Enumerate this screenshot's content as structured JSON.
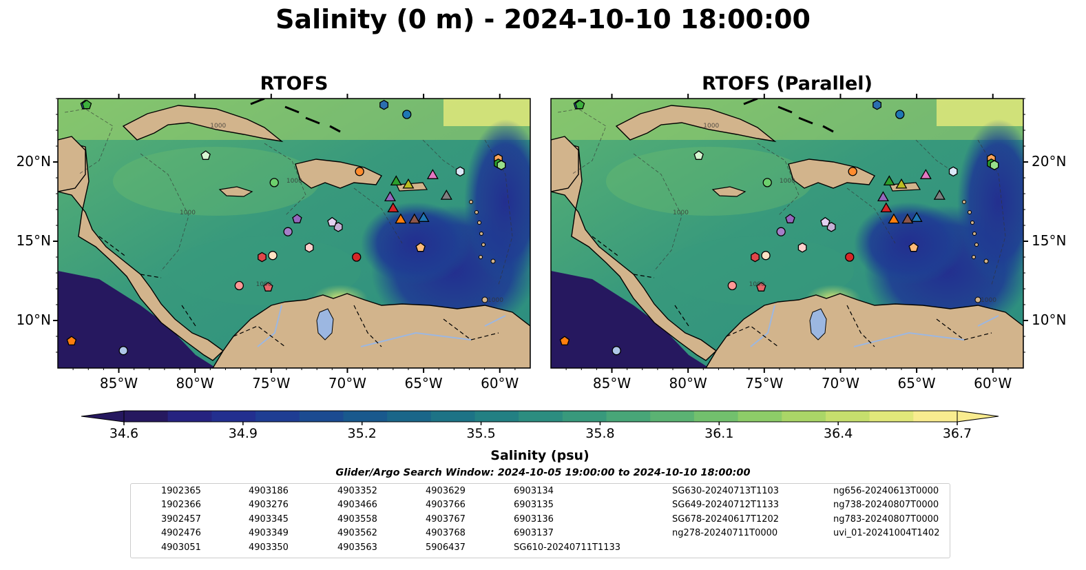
{
  "suptitle": "Salinity (0 m) - 2024-10-10 18:00:00",
  "chart_data": {
    "type": "heatmap",
    "title": "Salinity (0 m) - 2024-10-10 18:00:00",
    "panels": [
      {
        "title": "RTOFS"
      },
      {
        "title": "RTOFS (Parallel)"
      }
    ],
    "lon_range": [
      -89,
      -58
    ],
    "lat_range": [
      7,
      24
    ],
    "x_ticks": [
      {
        "value": -85,
        "label": "85°W"
      },
      {
        "value": -80,
        "label": "80°W"
      },
      {
        "value": -75,
        "label": "75°W"
      },
      {
        "value": -70,
        "label": "70°W"
      },
      {
        "value": -65,
        "label": "65°W"
      },
      {
        "value": -60,
        "label": "60°W"
      }
    ],
    "y_ticks": [
      {
        "value": 10,
        "label": "10°N"
      },
      {
        "value": 15,
        "label": "15°N"
      },
      {
        "value": 20,
        "label": "20°N"
      }
    ],
    "contour_label": "1000",
    "colorbar": {
      "label": "Salinity (psu)",
      "vmin": 34.6,
      "vmax": 36.7,
      "ticks": [
        {
          "value": 34.6,
          "label": "34.6"
        },
        {
          "value": 34.9,
          "label": "34.9"
        },
        {
          "value": 35.2,
          "label": "35.2"
        },
        {
          "value": 35.5,
          "label": "35.5"
        },
        {
          "value": 35.8,
          "label": "35.8"
        },
        {
          "value": 36.1,
          "label": "36.1"
        },
        {
          "value": 36.4,
          "label": "36.4"
        },
        {
          "value": 36.7,
          "label": "36.7"
        }
      ],
      "colors": [
        "#26185f",
        "#262380",
        "#232f8f",
        "#1f3d93",
        "#1b4b91",
        "#19598d",
        "#1a6689",
        "#1d7386",
        "#238083",
        "#2c8d80",
        "#38997c",
        "#48a678",
        "#5bb373",
        "#72c06d",
        "#8dcc68",
        "#aad667",
        "#c6df6d",
        "#e1e87a",
        "#f9ec8f"
      ],
      "land_color": "#d2b48c",
      "lake_color": "#9cb7e1"
    },
    "search_window": "Glider/Argo Search Window: 2024-10-05 19:00:00 to 2024-10-10 18:00:00",
    "argo_floats": [
      {
        "id": "1902365",
        "lon": -66.1,
        "lat": 23.0,
        "marker": "circle",
        "color": "#1f77b4"
      },
      {
        "id": "1902366",
        "lon": -67.6,
        "lat": 23.6,
        "marker": "hexagon",
        "color": "#2b6fb0"
      },
      {
        "id": "3902457",
        "lon": -87.2,
        "lat": 23.6,
        "marker": "pentagon",
        "color": "#3c7fc4"
      },
      {
        "id": "4902476",
        "lon": -84.7,
        "lat": 8.1,
        "marker": "circle",
        "color": "#aec7e8"
      },
      {
        "id": "4903051",
        "lon": -62.6,
        "lat": 19.4,
        "marker": "hexagon",
        "color": "#dbe8f7"
      },
      {
        "id": "4903186",
        "lon": -88.1,
        "lat": 8.7,
        "marker": "pentagon",
        "color": "#ff7f0e"
      },
      {
        "id": "4903276",
        "lon": -69.2,
        "lat": 19.4,
        "marker": "circle",
        "color": "#ff8c2e"
      },
      {
        "id": "4903345",
        "lon": -60.1,
        "lat": 20.2,
        "marker": "hexagon",
        "color": "#ffa55a"
      },
      {
        "id": "4903349",
        "lon": -65.2,
        "lat": 14.6,
        "marker": "pentagon",
        "color": "#ffbb78"
      },
      {
        "id": "4903350",
        "lon": -74.9,
        "lat": 14.1,
        "marker": "circle",
        "color": "#ffe3c4"
      },
      {
        "id": "4903352",
        "lon": -60.1,
        "lat": 19.9,
        "marker": "hexagon",
        "color": "#2ca02c"
      },
      {
        "id": "4903466",
        "lon": -87.1,
        "lat": 23.6,
        "marker": "pentagon",
        "color": "#3daf3d"
      },
      {
        "id": "4903558",
        "lon": -74.8,
        "lat": 18.7,
        "marker": "circle",
        "color": "#6dd06d"
      },
      {
        "id": "4903562",
        "lon": -59.9,
        "lat": 19.8,
        "marker": "hexagon",
        "color": "#98df8a"
      },
      {
        "id": "4903563",
        "lon": -79.3,
        "lat": 20.4,
        "marker": "pentagon",
        "color": "#d8f7d2"
      },
      {
        "id": "4903629",
        "lon": -69.4,
        "lat": 14.0,
        "marker": "circle",
        "color": "#d62728"
      },
      {
        "id": "4903766",
        "lon": -75.6,
        "lat": 14.0,
        "marker": "hexagon",
        "color": "#e0474a"
      },
      {
        "id": "4903767",
        "lon": -75.2,
        "lat": 12.1,
        "marker": "pentagon",
        "color": "#e8666a"
      },
      {
        "id": "4903768",
        "lon": -77.1,
        "lat": 12.2,
        "marker": "circle",
        "color": "#ff9896"
      },
      {
        "id": "5906437",
        "lon": -72.5,
        "lat": 14.6,
        "marker": "hexagon",
        "color": "#ffd0cc"
      },
      {
        "id": "6903134",
        "lon": -73.3,
        "lat": 16.4,
        "marker": "pentagon",
        "color": "#9467bd"
      },
      {
        "id": "6903135",
        "lon": -73.9,
        "lat": 15.6,
        "marker": "circle",
        "color": "#a57fc9"
      },
      {
        "id": "6903136",
        "lon": -70.6,
        "lat": 15.9,
        "marker": "hexagon",
        "color": "#c5b0d5"
      },
      {
        "id": "6903137",
        "lon": -71.0,
        "lat": 16.2,
        "marker": "pentagon",
        "color": "#e2d1f0"
      }
    ],
    "gliders": [
      {
        "id": "SG610-20240711T1133",
        "lon": -65.0,
        "lat": 16.5,
        "color": "#1f77b4"
      },
      {
        "id": "SG630-20240713T1103",
        "lon": -66.5,
        "lat": 16.4,
        "color": "#ff7f0e"
      },
      {
        "id": "SG649-20240712T1133",
        "lon": -66.8,
        "lat": 18.8,
        "color": "#2ca02c"
      },
      {
        "id": "SG678-20240617T1202",
        "lon": -67.0,
        "lat": 17.1,
        "color": "#d62728"
      },
      {
        "id": "ng278-20240711T0000",
        "lon": -67.2,
        "lat": 17.8,
        "color": "#9467bd"
      },
      {
        "id": "ng656-20240613T0000",
        "lon": -65.6,
        "lat": 16.4,
        "color": "#8c564b"
      },
      {
        "id": "ng738-20240807T0000",
        "lon": -64.4,
        "lat": 19.2,
        "color": "#e377c2"
      },
      {
        "id": "ng783-20240807T0000",
        "lon": -63.5,
        "lat": 17.9,
        "color": "#7f7f7f"
      },
      {
        "id": "uvi_01-20241004T1402",
        "lon": -66.0,
        "lat": 18.6,
        "color": "#bcbd22"
      }
    ]
  }
}
